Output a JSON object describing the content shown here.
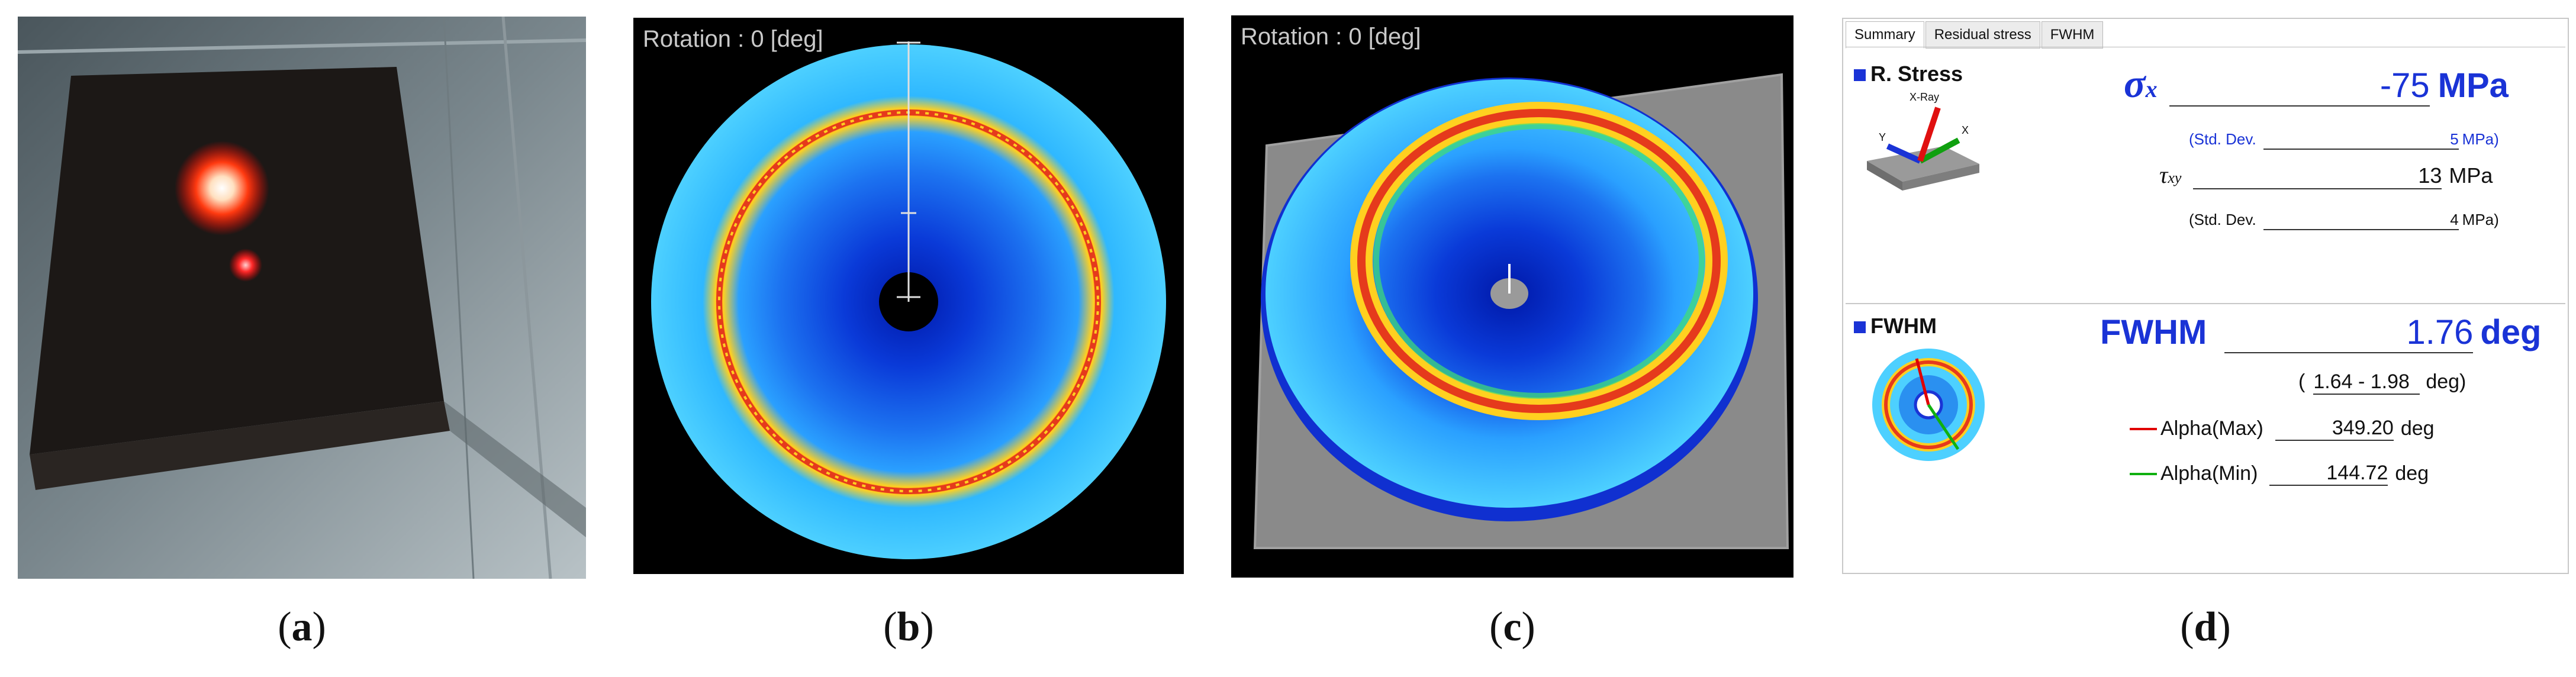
{
  "captions": {
    "a": "a",
    "b": "b",
    "c": "c",
    "d": "d"
  },
  "panel_b": {
    "rotation_label": "Rotation : 0 [deg]"
  },
  "panel_c": {
    "rotation_label": "Rotation : 0 [deg]"
  },
  "panel_d": {
    "tabs": [
      "Summary",
      "Residual stress",
      "FWHM"
    ],
    "stress_section": {
      "title": "R. Stress",
      "icon_xray_label": "X-Ray",
      "icon_y_label": "Y",
      "icon_x_label": "X",
      "sigma_symbol": "σ",
      "sigma_subscript": "x",
      "sigma_value": "-75",
      "sigma_unit": "MPa",
      "sigma_std_prefix": "(Std. Dev.",
      "sigma_std_value": "5",
      "sigma_std_unit": "MPa)",
      "tau_symbol": "τ",
      "tau_subscript": "xy",
      "tau_value": "13",
      "tau_unit": "MPa",
      "tau_std_prefix": "(Std. Dev.",
      "tau_std_value": "4",
      "tau_std_unit": "MPa)"
    },
    "fwhm_section": {
      "title": "FWHM",
      "label": "FWHM",
      "value": "1.76",
      "unit": "deg",
      "range_open": "(",
      "range_value": "1.64 - 1.98",
      "range_unit": "deg)",
      "alpha_max_label": "Alpha(Max)",
      "alpha_max_value": "349.20",
      "alpha_max_unit": "deg",
      "alpha_min_label": "Alpha(Min)",
      "alpha_min_value": "144.72",
      "alpha_min_unit": "deg"
    }
  },
  "colors": {
    "accent_blue": "#1a33d6",
    "ring_red": "#e53a1c",
    "alpha_max_line": "#e00000",
    "alpha_min_line": "#10b010"
  }
}
